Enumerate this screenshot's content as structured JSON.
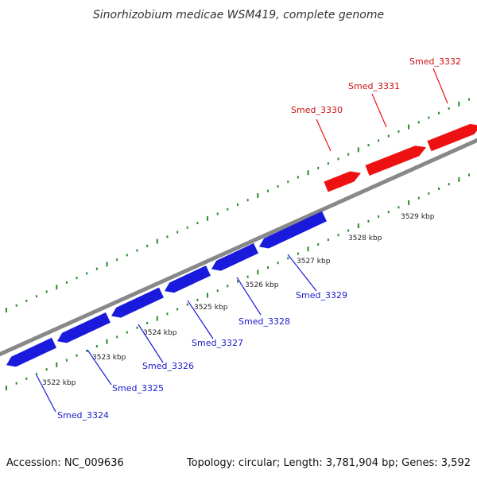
{
  "title": "Sinorhizobium medicae WSM419, complete genome",
  "footer": {
    "accession": "Accession: NC_009636",
    "topology": "Topology: circular; Length: 3,781,904 bp; Genes: 3,592"
  },
  "colors": {
    "forward": "#ee1111",
    "reverse": "#1a1add",
    "backbone": "#888888",
    "ticks": "#2a8a2a",
    "forward_label": "#cc1111",
    "reverse_label": "#1a1acc"
  },
  "ruler": {
    "labels": [
      "3522 kbp",
      "3523 kbp",
      "3524 kbp",
      "3525 kbp",
      "3526 kbp",
      "3527 kbp",
      "3528 kbp",
      "3529 kbp"
    ]
  },
  "genes_forward": [
    {
      "label": "Smed_3330"
    },
    {
      "label": "Smed_3331"
    },
    {
      "label": "Smed_3332"
    }
  ],
  "genes_reverse": [
    {
      "label": "Smed_3324"
    },
    {
      "label": "Smed_3325"
    },
    {
      "label": "Smed_3326"
    },
    {
      "label": "Smed_3327"
    },
    {
      "label": "Smed_3328"
    },
    {
      "label": "Smed_3329"
    }
  ]
}
